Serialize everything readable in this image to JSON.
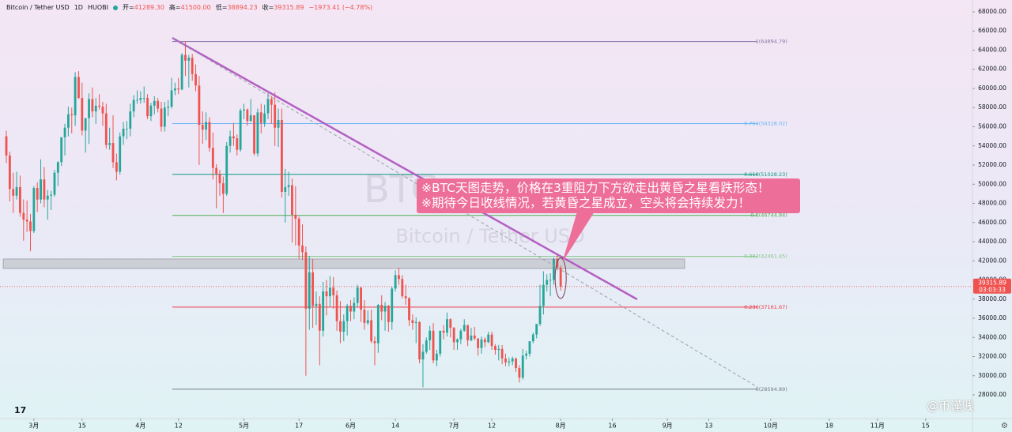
{
  "chart_data": {
    "type": "candlestick",
    "header": {
      "symbol": "Bitcoin / Tether USD",
      "interval": "1D",
      "exchange": "HUOBI",
      "open_label": "开=",
      "open": "41289.30",
      "high_label": "高=",
      "high": "41500.00",
      "low_label": "低=",
      "low": "38894.23",
      "close_label": "收=",
      "close": "39315.89",
      "change": "−1973.41 (−4.78%)"
    },
    "watermark": "BTC",
    "annotation": [
      "※BTC天图走势，价格在3重阻力下方欲走出黄昏之星看跌形态！",
      "※期待今日收线情况，若黄昏之星成立，空头将会持续发力！"
    ],
    "credit": "@币谨贱",
    "last_price_label": "39315.89",
    "countdown": "03:03:33",
    "up_color": "#26a69a",
    "down_color": "#ef5350",
    "xlim": [
      -1.84,
      280.6
    ],
    "ylim": [
      25526,
      69237
    ],
    "xticks": [
      {
        "value": 8,
        "label": "3月"
      },
      {
        "value": 22,
        "label": "15"
      },
      {
        "value": 39,
        "label": "4月"
      },
      {
        "value": 50,
        "label": "12"
      },
      {
        "value": 69,
        "label": "5月"
      },
      {
        "value": 85,
        "label": "17"
      },
      {
        "value": 100,
        "label": "6月"
      },
      {
        "value": 113,
        "label": "14"
      },
      {
        "value": 130,
        "label": "7月"
      },
      {
        "value": 141,
        "label": "12"
      },
      {
        "value": 161,
        "label": "8月"
      },
      {
        "value": 176,
        "label": "16"
      },
      {
        "value": 192,
        "label": "9月"
      },
      {
        "value": 204,
        "label": "13"
      },
      {
        "value": 222,
        "label": "10月"
      },
      {
        "value": 239,
        "label": "18"
      },
      {
        "value": 253,
        "label": "11月"
      },
      {
        "value": 267,
        "label": "15"
      }
    ],
    "yticks": [
      {
        "value": 28000,
        "label": "28000.00"
      },
      {
        "value": 30000,
        "label": "30000.00"
      },
      {
        "value": 32000,
        "label": "32000.00"
      },
      {
        "value": 34000,
        "label": "34000.00"
      },
      {
        "value": 36000,
        "label": "36000.00"
      },
      {
        "value": 38000,
        "label": "38000.00"
      },
      {
        "value": 40000,
        "label": "40000.00"
      },
      {
        "value": 42000,
        "label": "42000.00"
      },
      {
        "value": 44000,
        "label": "44000.00"
      },
      {
        "value": 46000,
        "label": "46000.00"
      },
      {
        "value": 48000,
        "label": "48000.00"
      },
      {
        "value": 50000,
        "label": "50000.00"
      },
      {
        "value": 52000,
        "label": "52000.00"
      },
      {
        "value": 54000,
        "label": "54000.00"
      },
      {
        "value": 56000,
        "label": "56000.00"
      },
      {
        "value": 58000,
        "label": "58000.00"
      },
      {
        "value": 60000,
        "label": "60000.00"
      },
      {
        "value": 62000,
        "label": "62000.00"
      },
      {
        "value": 64000,
        "label": "64000.00"
      },
      {
        "value": 66000,
        "label": "66000.00"
      },
      {
        "value": 68000,
        "label": "68000.00"
      }
    ],
    "fib_x": [
      48.2,
      218.1
    ],
    "fib_levels": [
      {
        "value": 64894.79,
        "label": "1(64894.79)",
        "color": "#8a6fa8"
      },
      {
        "value": 56328.02,
        "label": "0.764(56328.02)",
        "color": "#64b5f6"
      },
      {
        "value": 51028.23,
        "label": "0.618(51028.23)",
        "color": "#089981"
      },
      {
        "value": 46744.84,
        "label": "0.5(46744.84)",
        "color": "#4caf50"
      },
      {
        "value": 42461.45,
        "label": "0.382(42461.45)",
        "color": "#81c784"
      },
      {
        "value": 37161.67,
        "label": "0.236(37161.67)",
        "color": "#f23645"
      },
      {
        "value": 28594.89,
        "label": "0(28594.89)",
        "color": "#787b86"
      }
    ],
    "trendlines": [
      {
        "x": [
          48.2,
          183.2
        ],
        "y": [
          65278,
          37979
        ],
        "color": "#b45fc4",
        "dashed": false
      },
      {
        "x": [
          48.2,
          218.1
        ],
        "y": [
          65278,
          28825
        ],
        "color": "#9aa0aa",
        "dashed": true
      }
    ],
    "zone": {
      "x": [
        -0.9,
        197
      ],
      "y": [
        41200,
        42190
      ],
      "color": "#c4c6cc"
    },
    "candles": [
      [
        55000,
        55600,
        52200,
        53000
      ],
      [
        53000,
        53400,
        48200,
        49500
      ],
      [
        49500,
        51200,
        47000,
        48800
      ],
      [
        48800,
        51300,
        48400,
        49700
      ],
      [
        49700,
        50900,
        46600,
        47000
      ],
      [
        47000,
        48400,
        44100,
        46300
      ],
      [
        46300,
        48300,
        45000,
        46100
      ],
      [
        46100,
        46900,
        43000,
        45100
      ],
      [
        45100,
        49800,
        44900,
        49600
      ],
      [
        49600,
        50200,
        47100,
        48400
      ],
      [
        48400,
        52600,
        48000,
        50500
      ],
      [
        50500,
        51800,
        47600,
        48400
      ],
      [
        48400,
        49400,
        46300,
        48800
      ],
      [
        48800,
        49300,
        47300,
        48900
      ],
      [
        48900,
        51500,
        48700,
        51200
      ],
      [
        51200,
        52400,
        49800,
        52300
      ],
      [
        52300,
        54900,
        51900,
        54900
      ],
      [
        54900,
        56300,
        53000,
        55900
      ],
      [
        55900,
        58100,
        55000,
        57300
      ],
      [
        57300,
        58000,
        55300,
        57200
      ],
      [
        57200,
        61700,
        56100,
        61200
      ],
      [
        61200,
        61800,
        58900,
        59000
      ],
      [
        59000,
        60600,
        55100,
        55600
      ],
      [
        55600,
        56900,
        53300,
        56900
      ],
      [
        56900,
        59500,
        54200,
        58900
      ],
      [
        58900,
        60100,
        57000,
        57600
      ],
      [
        57600,
        59000,
        56300,
        58200
      ],
      [
        58200,
        59400,
        57800,
        58100
      ],
      [
        58100,
        58600,
        56100,
        57400
      ],
      [
        57400,
        58400,
        53700,
        54100
      ],
      [
        54100,
        55900,
        53600,
        54300
      ],
      [
        54300,
        57200,
        51700,
        52300
      ],
      [
        52300,
        53200,
        50400,
        51300
      ],
      [
        51300,
        55400,
        51000,
        55000
      ],
      [
        55000,
        56500,
        54100,
        55800
      ],
      [
        55800,
        56600,
        54700,
        55800
      ],
      [
        55800,
        58400,
        55000,
        57600
      ],
      [
        57600,
        59300,
        57000,
        58800
      ],
      [
        58800,
        59800,
        58400,
        58800
      ],
      [
        58800,
        59700,
        58400,
        59000
      ],
      [
        59000,
        60200,
        58500,
        59000
      ],
      [
        59000,
        59400,
        56800,
        57100
      ],
      [
        57100,
        58500,
        56600,
        58200
      ],
      [
        58200,
        59200,
        57300,
        58700
      ],
      [
        58700,
        59000,
        57500,
        57900
      ],
      [
        57900,
        58600,
        55500,
        56000
      ],
      [
        56000,
        58600,
        55500,
        58000
      ],
      [
        58000,
        58800,
        57100,
        58100
      ],
      [
        58100,
        61100,
        57900,
        59800
      ],
      [
        59800,
        60600,
        59300,
        60000
      ],
      [
        60000,
        61100,
        59400,
        59900
      ],
      [
        59900,
        63700,
        59800,
        63500
      ],
      [
        63500,
        64900,
        61300,
        62900
      ],
      [
        62900,
        63500,
        60100,
        63200
      ],
      [
        63200,
        63600,
        60800,
        61500
      ],
      [
        61500,
        62500,
        59700,
        60300
      ],
      [
        60300,
        61300,
        52000,
        56200
      ],
      [
        56200,
        57600,
        54200,
        55700
      ],
      [
        55700,
        57500,
        54600,
        56500
      ],
      [
        56500,
        57000,
        53400,
        53800
      ],
      [
        53800,
        55400,
        50500,
        51700
      ],
      [
        51700,
        52100,
        47500,
        51100
      ],
      [
        51100,
        51500,
        48800,
        50100
      ],
      [
        50100,
        50800,
        47000,
        49000
      ],
      [
        49000,
        54400,
        48800,
        54000
      ],
      [
        54000,
        55600,
        53300,
        55000
      ],
      [
        55000,
        56400,
        54000,
        54800
      ],
      [
        54800,
        55200,
        53000,
        53600
      ],
      [
        53600,
        57900,
        53400,
        57700
      ],
      [
        57700,
        58400,
        56800,
        57800
      ],
      [
        57800,
        57900,
        56100,
        56600
      ],
      [
        56600,
        58900,
        56500,
        57200
      ],
      [
        57200,
        57200,
        53000,
        53200
      ],
      [
        53200,
        57900,
        52900,
        57500
      ],
      [
        57500,
        58400,
        55300,
        56400
      ],
      [
        56400,
        58300,
        56000,
        57400
      ],
      [
        57400,
        59500,
        56800,
        58900
      ],
      [
        58900,
        59200,
        56300,
        58300
      ],
      [
        58300,
        59600,
        54000,
        55900
      ],
      [
        55900,
        57900,
        53900,
        56700
      ],
      [
        56700,
        57900,
        48600,
        49200
      ],
      [
        49200,
        51600,
        46000,
        49700
      ],
      [
        49700,
        51300,
        48800,
        49900
      ],
      [
        49900,
        50600,
        43900,
        46800
      ],
      [
        46800,
        49800,
        43600,
        46400
      ],
      [
        46400,
        46600,
        42200,
        43600
      ],
      [
        43600,
        45800,
        42100,
        42900
      ],
      [
        42900,
        43500,
        30000,
        37000
      ],
      [
        37000,
        42500,
        34800,
        40800
      ],
      [
        40800,
        42200,
        35000,
        37300
      ],
      [
        37300,
        38800,
        35300,
        37500
      ],
      [
        37500,
        38300,
        31100,
        34700
      ],
      [
        34700,
        39800,
        34100,
        38800
      ],
      [
        38800,
        40000,
        36300,
        38300
      ],
      [
        38300,
        40400,
        37200,
        39200
      ],
      [
        39200,
        40300,
        37000,
        38400
      ],
      [
        38400,
        38900,
        34700,
        35700
      ],
      [
        35700,
        37800,
        33400,
        34600
      ],
      [
        34600,
        36400,
        33600,
        35700
      ],
      [
        35700,
        37500,
        34200,
        37300
      ],
      [
        37300,
        37900,
        35700,
        36700
      ],
      [
        36700,
        38200,
        35900,
        37600
      ],
      [
        37600,
        39500,
        37200,
        39200
      ],
      [
        39200,
        39300,
        35600,
        36900
      ],
      [
        36900,
        37900,
        34800,
        35500
      ],
      [
        35500,
        36800,
        35300,
        35800
      ],
      [
        35800,
        36900,
        33400,
        33600
      ],
      [
        33600,
        34100,
        31100,
        33400
      ],
      [
        33400,
        37500,
        32400,
        37400
      ],
      [
        37400,
        38400,
        35800,
        36700
      ],
      [
        36700,
        37700,
        34700,
        37300
      ],
      [
        37300,
        37400,
        34600,
        35600
      ],
      [
        35600,
        39300,
        34800,
        39100
      ],
      [
        39100,
        41000,
        38800,
        40500
      ],
      [
        40500,
        41300,
        39500,
        40100
      ],
      [
        40100,
        40500,
        38100,
        38300
      ],
      [
        38300,
        39500,
        37400,
        38100
      ],
      [
        38100,
        38200,
        35200,
        35800
      ],
      [
        35800,
        36400,
        34800,
        35500
      ],
      [
        35500,
        36100,
        33400,
        35600
      ],
      [
        35600,
        35700,
        31300,
        31700
      ],
      [
        31700,
        33300,
        28800,
        32500
      ],
      [
        32500,
        34000,
        32300,
        33700
      ],
      [
        33700,
        35200,
        32700,
        34700
      ],
      [
        34700,
        35500,
        31300,
        31600
      ],
      [
        31600,
        32700,
        31000,
        32300
      ],
      [
        32300,
        34700,
        32000,
        34700
      ],
      [
        34700,
        35300,
        33800,
        34500
      ],
      [
        34500,
        36600,
        34100,
        35900
      ],
      [
        35900,
        36000,
        34000,
        35000
      ],
      [
        35000,
        35100,
        32700,
        33500
      ],
      [
        33500,
        33900,
        32700,
        33800
      ],
      [
        33800,
        34900,
        33300,
        34700
      ],
      [
        34700,
        35900,
        34600,
        35300
      ],
      [
        35300,
        35300,
        33100,
        33700
      ],
      [
        33700,
        35000,
        33600,
        34200
      ],
      [
        34200,
        35100,
        33700,
        33900
      ],
      [
        33900,
        33900,
        32100,
        32900
      ],
      [
        32900,
        34100,
        32300,
        33800
      ],
      [
        33800,
        34000,
        33000,
        33500
      ],
      [
        33500,
        34600,
        33400,
        34300
      ],
      [
        34300,
        34600,
        32700,
        33100
      ],
      [
        33100,
        33300,
        32200,
        32700
      ],
      [
        32700,
        33200,
        31600,
        32800
      ],
      [
        32800,
        33200,
        31200,
        31800
      ],
      [
        31800,
        32300,
        31000,
        31400
      ],
      [
        31400,
        31900,
        31000,
        31500
      ],
      [
        31500,
        32000,
        31100,
        31800
      ],
      [
        31800,
        31900,
        30400,
        30800
      ],
      [
        30800,
        31100,
        29300,
        29800
      ],
      [
        29800,
        32800,
        29600,
        32100
      ],
      [
        32100,
        32600,
        31700,
        32300
      ],
      [
        32300,
        33600,
        32000,
        33600
      ],
      [
        33600,
        34500,
        33400,
        34300
      ],
      [
        34300,
        35400,
        33900,
        35400
      ],
      [
        35400,
        39500,
        35200,
        37300
      ],
      [
        37300,
        40900,
        36400,
        39500
      ],
      [
        39500,
        40600,
        38800,
        40000
      ],
      [
        40000,
        40700,
        38300,
        40000
      ],
      [
        40000,
        42300,
        39500,
        42200
      ],
      [
        42200,
        42600,
        41000,
        41300
      ],
      [
        41289.3,
        41500,
        38894.23,
        39315.89
      ]
    ]
  }
}
